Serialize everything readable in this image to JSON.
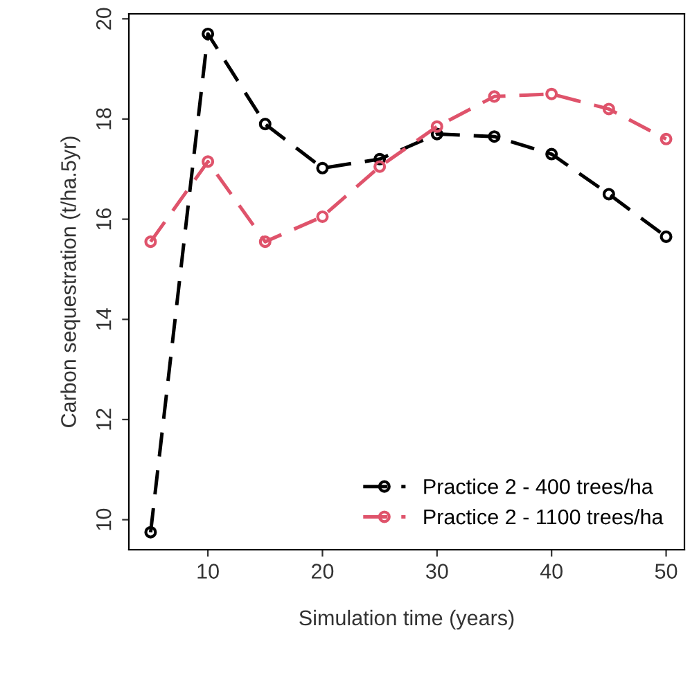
{
  "chart_data": {
    "type": "line",
    "xlabel": "Simulation time (years)",
    "ylabel": "Carbon sequestration (t/ha.5yr)",
    "x": [
      5,
      10,
      15,
      20,
      25,
      30,
      35,
      40,
      45,
      50
    ],
    "series": [
      {
        "name": "Practice 2 - 400 trees/ha",
        "color": "#000000",
        "line_style": "dashed",
        "values": [
          9.75,
          19.7,
          17.9,
          17.02,
          17.2,
          17.7,
          17.65,
          17.3,
          16.5,
          15.65
        ]
      },
      {
        "name": "Practice 2 - 1100 trees/ha",
        "color": "#df536b",
        "line_style": "dashed",
        "values": [
          15.55,
          17.15,
          15.55,
          16.05,
          17.05,
          17.85,
          18.45,
          18.5,
          18.2,
          17.6
        ]
      }
    ],
    "xlim": [
      3.1,
      51.6
    ],
    "xticks": [
      10,
      20,
      30,
      40,
      50
    ],
    "ylim": [
      9.4,
      20.1
    ],
    "yticks": [
      10,
      12,
      14,
      16,
      18,
      20
    ],
    "marker": "circle",
    "grid": false,
    "legend": "bottom right"
  }
}
